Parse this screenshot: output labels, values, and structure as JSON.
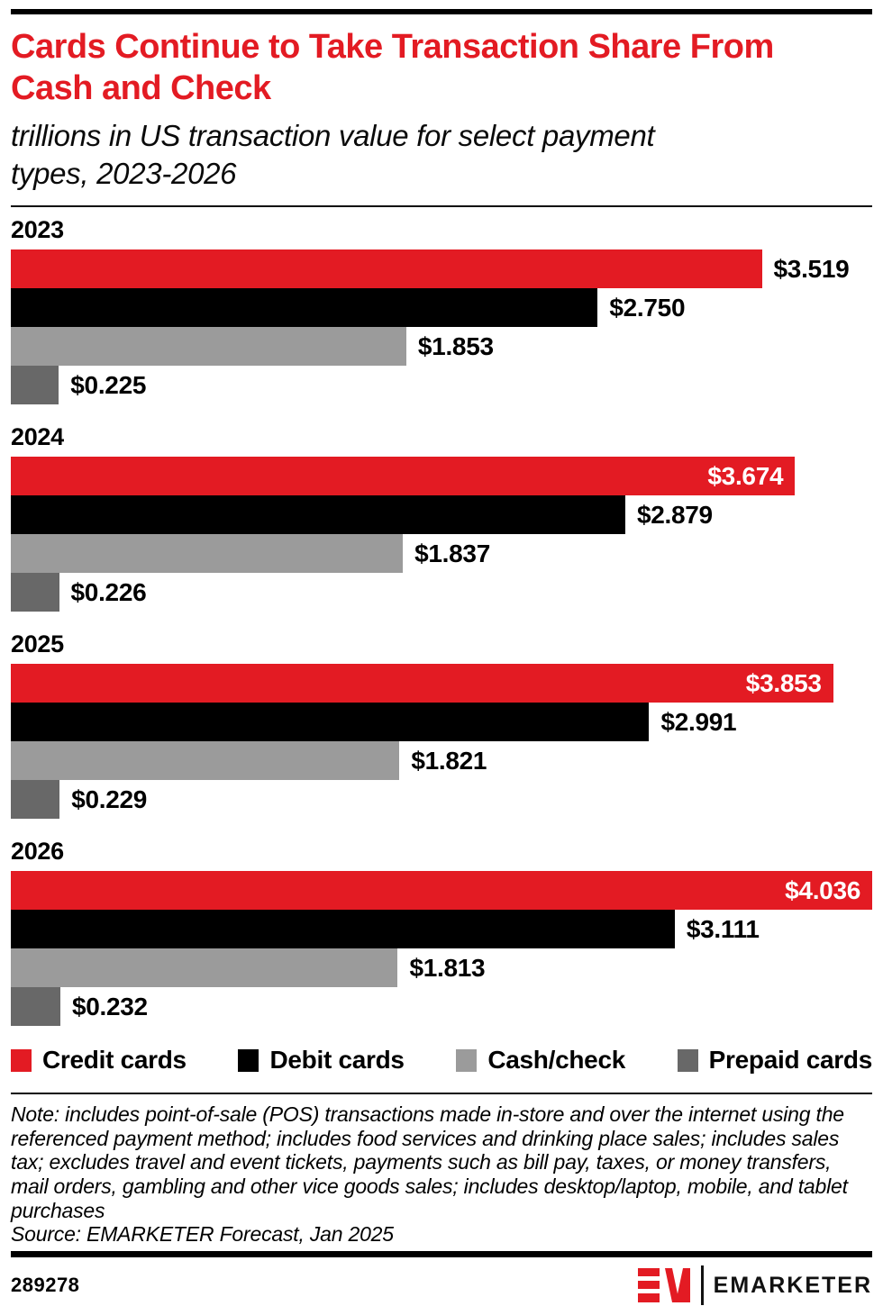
{
  "header": {
    "title": "Cards Continue to Take Transaction Share From Cash and Check",
    "title_lines": [
      "Cards Continue to Take Transaction Share From",
      "Cash and Check"
    ],
    "subtitle": "trillions in US transaction value for select payment types, 2023-2026",
    "subtitle_lines": [
      "trillions in US transaction value for select payment",
      "types, 2023-2026"
    ]
  },
  "colors": {
    "accent_red": "#e31b23",
    "bar_black": "#000000",
    "bar_gray": "#9b9b9b",
    "bar_dark_gray": "#686868"
  },
  "chart_data": {
    "type": "bar",
    "orientation": "horizontal",
    "unit": "trillions of US dollars",
    "categories": [
      "2023",
      "2024",
      "2025",
      "2026"
    ],
    "series": [
      {
        "name": "Credit cards",
        "color": "#e31b23",
        "values": [
          3.519,
          3.674,
          3.853,
          4.036
        ],
        "labels": [
          "$3.519",
          "$3.674",
          "$3.853",
          "$4.036"
        ],
        "labels_inside": [
          false,
          true,
          true,
          true
        ]
      },
      {
        "name": "Debit cards",
        "color": "#000000",
        "values": [
          2.75,
          2.879,
          2.991,
          3.111
        ],
        "labels": [
          "$2.750",
          "$2.879",
          "$2.991",
          "$3.111"
        ],
        "labels_inside": [
          false,
          false,
          false,
          false
        ]
      },
      {
        "name": "Cash/check",
        "color": "#9b9b9b",
        "values": [
          1.853,
          1.837,
          1.821,
          1.813
        ],
        "labels": [
          "$1.853",
          "$1.837",
          "$1.821",
          "$1.813"
        ],
        "labels_inside": [
          false,
          false,
          false,
          false
        ]
      },
      {
        "name": "Prepaid cards",
        "color": "#686868",
        "values": [
          0.225,
          0.226,
          0.229,
          0.232
        ],
        "labels": [
          "$0.225",
          "$0.226",
          "$0.229",
          "$0.232"
        ],
        "labels_inside": [
          false,
          false,
          false,
          false
        ]
      }
    ],
    "xlim": [
      0,
      4.036
    ],
    "grid": false,
    "legend_position": "bottom"
  },
  "footnote": {
    "note": "Note: includes point-of-sale (POS) transactions made in-store and over the internet using the referenced payment method; includes food services and drinking place sales; includes sales tax; excludes travel and event tickets, payments such as bill pay, taxes, or money transfers, mail orders, gambling and other vice goods sales; includes desktop/laptop, mobile, and tablet purchases",
    "source": "Source: EMARKETER Forecast, Jan 2025"
  },
  "footer": {
    "chart_id": "289278",
    "brand": "EMARKETER",
    "logo_icon": "emarketer-em-monogram"
  }
}
